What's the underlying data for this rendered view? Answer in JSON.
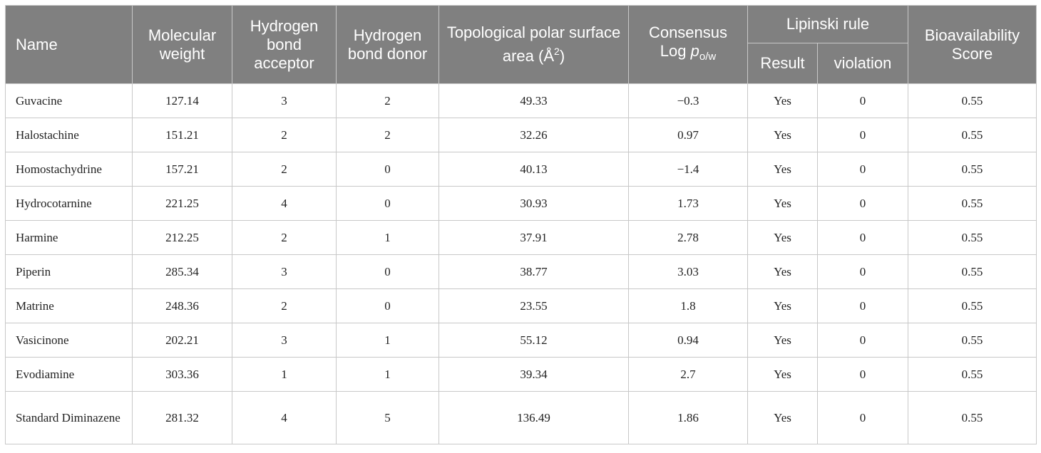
{
  "headers": {
    "name": "Name",
    "mw": "Molecular weight",
    "hba": "Hydrogen bond acceptor",
    "hbd": "Hydrogen bond donor",
    "tpsa_main": "Topological polar surface area (Å",
    "tpsa_sup": "2",
    "tpsa_end": ")",
    "logp_line1": "Consensus",
    "logp_log": "Log ",
    "logp_p": "p",
    "logp_sub": "o/w",
    "lipinski": "Lipinski rule",
    "result": "Result",
    "violation": "violation",
    "bioavail": "Bioavailability Score"
  },
  "rows": [
    {
      "name": "Guvacine",
      "mw": "127.14",
      "hba": "3",
      "hbd": "2",
      "tpsa": "49.33",
      "logp": "−0.3",
      "result": "Yes",
      "violation": "0",
      "score": "0.55"
    },
    {
      "name": "Halostachine",
      "mw": "151.21",
      "hba": "2",
      "hbd": "2",
      "tpsa": "32.26",
      "logp": "0.97",
      "result": "Yes",
      "violation": "0",
      "score": "0.55"
    },
    {
      "name": "Homostachydrine",
      "mw": "157.21",
      "hba": "2",
      "hbd": "0",
      "tpsa": "40.13",
      "logp": "−1.4",
      "result": "Yes",
      "violation": "0",
      "score": "0.55"
    },
    {
      "name": "Hydrocotarnine",
      "mw": "221.25",
      "hba": "4",
      "hbd": "0",
      "tpsa": "30.93",
      "logp": "1.73",
      "result": "Yes",
      "violation": "0",
      "score": "0.55"
    },
    {
      "name": "Harmine",
      "mw": "212.25",
      "hba": "2",
      "hbd": "1",
      "tpsa": "37.91",
      "logp": "2.78",
      "result": "Yes",
      "violation": "0",
      "score": "0.55"
    },
    {
      "name": "Piperin",
      "mw": "285.34",
      "hba": "3",
      "hbd": "0",
      "tpsa": "38.77",
      "logp": "3.03",
      "result": "Yes",
      "violation": "0",
      "score": "0.55"
    },
    {
      "name": "Matrine",
      "mw": "248.36",
      "hba": "2",
      "hbd": "0",
      "tpsa": "23.55",
      "logp": "1.8",
      "result": "Yes",
      "violation": "0",
      "score": "0.55"
    },
    {
      "name": "Vasicinone",
      "mw": "202.21",
      "hba": "3",
      "hbd": "1",
      "tpsa": "55.12",
      "logp": "0.94",
      "result": "Yes",
      "violation": "0",
      "score": "0.55"
    },
    {
      "name": "Evodiamine",
      "mw": "303.36",
      "hba": "1",
      "hbd": "1",
      "tpsa": "39.34",
      "logp": "2.7",
      "result": "Yes",
      "violation": "0",
      "score": "0.55"
    },
    {
      "name": "Standard Diminazene",
      "mw": "281.32",
      "hba": "4",
      "hbd": "5",
      "tpsa": "136.49",
      "logp": "1.86",
      "result": "Yes",
      "violation": "0",
      "score": "0.55"
    }
  ]
}
